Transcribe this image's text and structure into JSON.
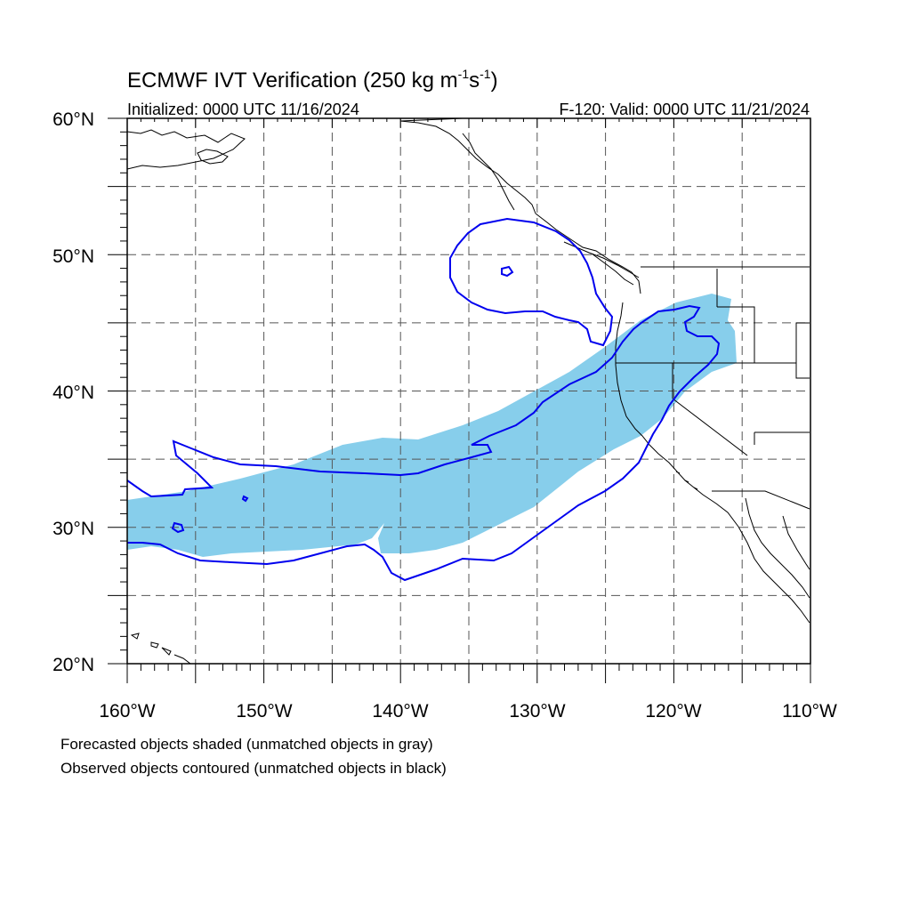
{
  "title": {
    "main": "ECMWF IVT Verification (250 kg m",
    "sup1": "-1",
    "mid": "s",
    "sup2": "-1",
    "end": ")"
  },
  "subtitle": {
    "left": "Initialized: 0000 UTC 11/16/2024",
    "right": "F-120: Valid: 0000 UTC 11/21/2024"
  },
  "axes": {
    "lat_labels": [
      "60°N",
      "50°N",
      "40°N",
      "30°N",
      "20°N"
    ],
    "lon_labels": [
      "160°W",
      "150°W",
      "140°W",
      "130°W",
      "120°W",
      "110°W"
    ],
    "lat_range": [
      20,
      60
    ],
    "lon_range": [
      -160,
      -110
    ]
  },
  "legend": {
    "line1": "Forecasted objects shaded (unmatched objects in gray)",
    "line2": "Observed objects contoured (unmatched objects in black)"
  },
  "colors": {
    "forecast_fill": "#87ceeb",
    "observed_contour": "#0000ee",
    "coastline": "#000000",
    "grid": "#555555"
  }
}
